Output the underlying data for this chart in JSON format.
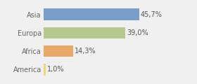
{
  "categories": [
    "Asia",
    "Europa",
    "Africa",
    "America"
  ],
  "values": [
    45.7,
    39.0,
    14.3,
    1.0
  ],
  "bar_colors": [
    "#7b9dc9",
    "#b5c98e",
    "#e8a86a",
    "#e8d87a"
  ],
  "labels": [
    "45,7%",
    "39,0%",
    "14,3%",
    "1,0%"
  ],
  "background_color": "#f0f0f0",
  "xlim": [
    0,
    62
  ],
  "bar_height": 0.62,
  "label_fontsize": 7.0,
  "category_fontsize": 7.0,
  "label_color": "#555555",
  "category_color": "#666666"
}
